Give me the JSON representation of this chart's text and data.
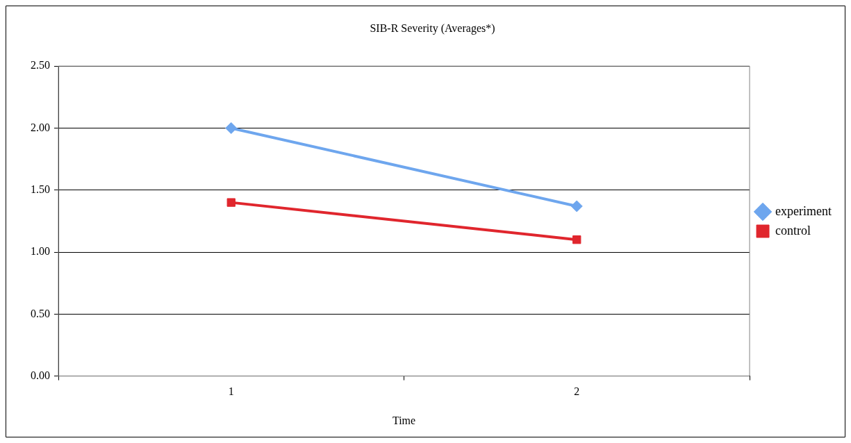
{
  "chart_data": {
    "type": "line",
    "title": "SIB-R Severity (Averages*)",
    "xlabel": "Time",
    "categories": [
      "1",
      "2"
    ],
    "series": [
      {
        "name": "experiment",
        "color": "#6ea6ee",
        "values": [
          2.0,
          1.37
        ],
        "marker": "diamond"
      },
      {
        "name": "control",
        "color": "#e0262d",
        "values": [
          1.4,
          1.1
        ],
        "marker": "square"
      }
    ],
    "ylim": [
      0,
      2.5
    ],
    "yticks": [
      {
        "value": 0,
        "label": "0.00"
      },
      {
        "value": 0.5,
        "label": "0.50"
      },
      {
        "value": 1,
        "label": "1.00"
      },
      {
        "value": 1.5,
        "label": "1.50"
      },
      {
        "value": 2,
        "label": "2.00"
      },
      {
        "value": 2.5,
        "label": "2.50"
      }
    ],
    "grid": "y",
    "legend": "right",
    "line_style": "solid"
  }
}
